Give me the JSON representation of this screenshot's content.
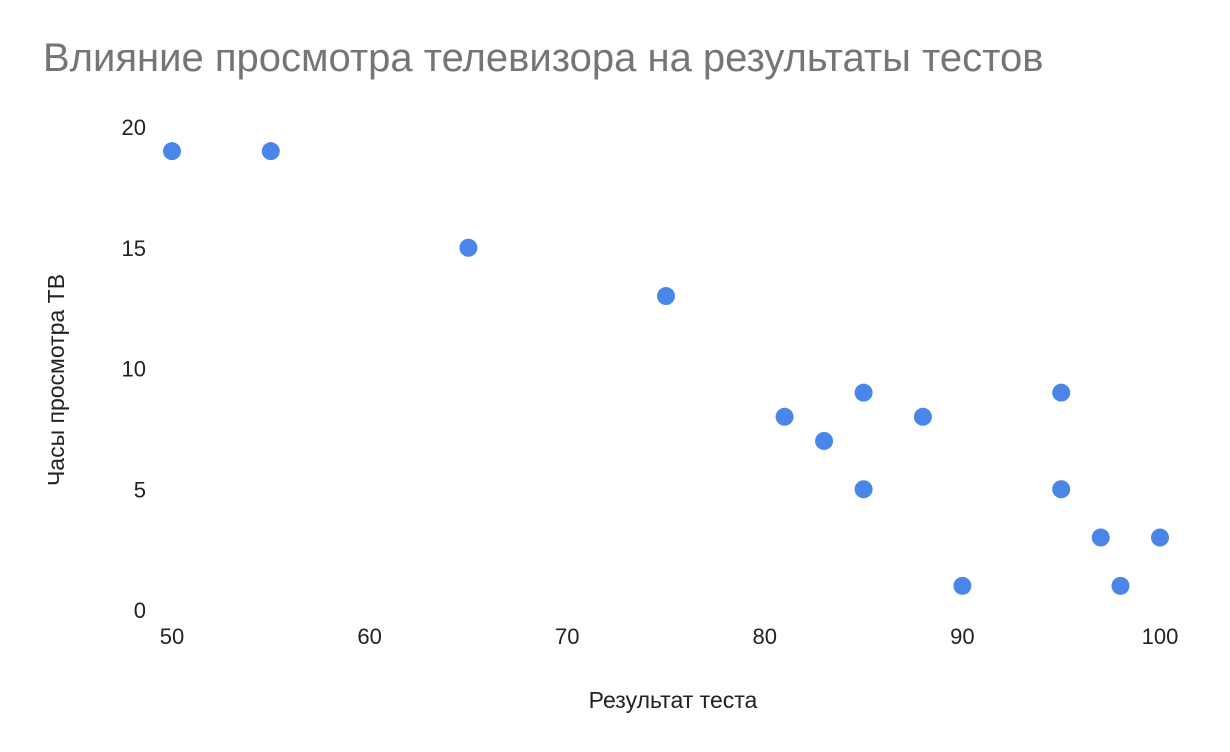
{
  "chart_data": {
    "type": "scatter",
    "title": "Влияние просмотра телевизора на результаты тестов",
    "xlabel": "Результат теста",
    "ylabel": "Часы просмотра ТВ",
    "xlim": [
      50,
      100
    ],
    "ylim": [
      0,
      20
    ],
    "xticks": [
      "50",
      "60",
      "70",
      "80",
      "90",
      "100"
    ],
    "yticks": [
      "0",
      "5",
      "10",
      "15",
      "20"
    ],
    "grid": false,
    "legend": "none",
    "color": "#4a86e8",
    "points": [
      {
        "x": 50,
        "y": 19
      },
      {
        "x": 55,
        "y": 19
      },
      {
        "x": 65,
        "y": 15
      },
      {
        "x": 75,
        "y": 13
      },
      {
        "x": 81,
        "y": 8
      },
      {
        "x": 83,
        "y": 7
      },
      {
        "x": 85,
        "y": 9
      },
      {
        "x": 85,
        "y": 5
      },
      {
        "x": 88,
        "y": 8
      },
      {
        "x": 90,
        "y": 1
      },
      {
        "x": 95,
        "y": 9
      },
      {
        "x": 95,
        "y": 5
      },
      {
        "x": 97,
        "y": 3
      },
      {
        "x": 98,
        "y": 1
      },
      {
        "x": 100,
        "y": 3
      }
    ]
  }
}
